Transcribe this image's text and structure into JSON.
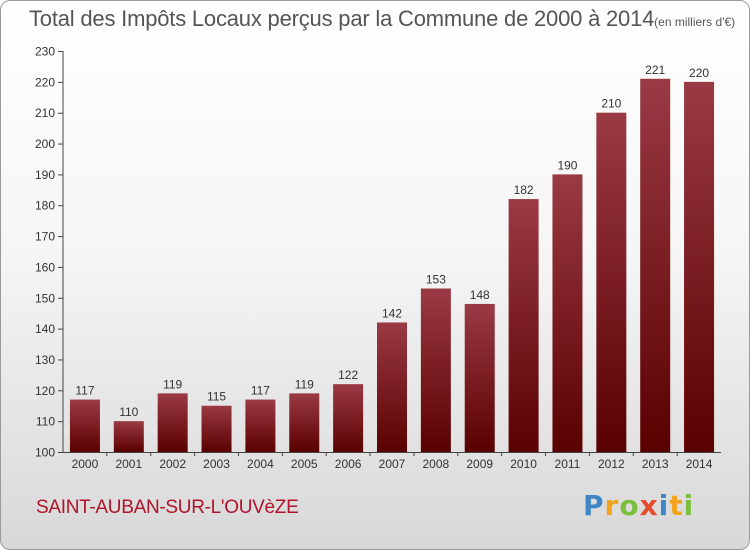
{
  "title": {
    "main": "Total des Impôts Locaux perçus par la Commune de 2000 à 2014",
    "unit": "(en milliers d'€)"
  },
  "footer": {
    "commune": "SAINT-AUBAN-SUR-L'OUVèZE",
    "brand_letters": [
      "P",
      "r",
      "o",
      "x",
      "i",
      "t",
      "i"
    ],
    "brand_colors": [
      "#3f86c6",
      "#f2a31b",
      "#7cbf3d",
      "#e64b2a",
      "#3f86c6",
      "#f2a31b",
      "#7cbf3d"
    ]
  },
  "colors": {
    "bar_top": "#9a3a45",
    "bar_bottom": "#5a0000",
    "axis": "#444444",
    "text": "#333333"
  },
  "chart_data": {
    "type": "bar",
    "categories": [
      "2000",
      "2001",
      "2002",
      "2003",
      "2004",
      "2005",
      "2006",
      "2007",
      "2008",
      "2009",
      "2010",
      "2011",
      "2012",
      "2013",
      "2014"
    ],
    "values": [
      117,
      110,
      119,
      115,
      117,
      119,
      122,
      142,
      153,
      148,
      182,
      190,
      210,
      221,
      220
    ],
    "ylim": [
      100,
      230
    ],
    "yticks": [
      100,
      110,
      120,
      130,
      140,
      150,
      160,
      170,
      180,
      190,
      200,
      210,
      220,
      230
    ],
    "xlabel": "",
    "ylabel": "",
    "grid": false,
    "legend": "none"
  }
}
